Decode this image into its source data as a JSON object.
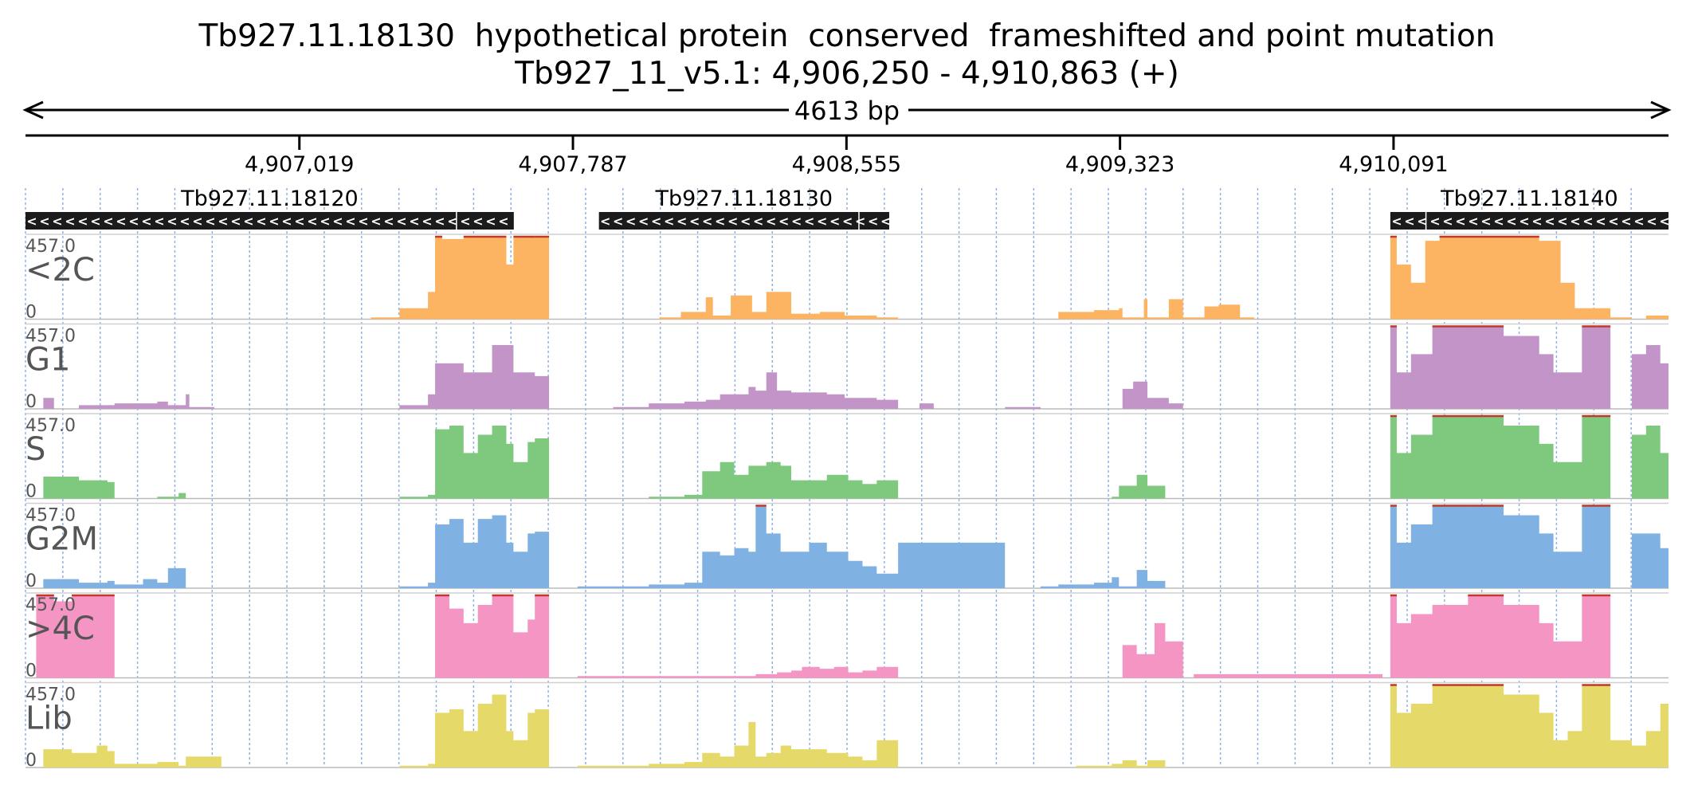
{
  "title": "Tb927.11.18130  hypothetical protein  conserved  frameshifted and point mutation",
  "subtitle": "Tb927_11_v5.1: 4,906,250 - 4,910,863 (+)",
  "span_label": "4613 bp",
  "region": {
    "chrom": "Tb927_11_v5.1",
    "start": 4906250,
    "end": 4910863,
    "strand": "+"
  },
  "ticks": [
    {
      "pos": 4907019,
      "label": "4,907,019"
    },
    {
      "pos": 4907787,
      "label": "4,907,787"
    },
    {
      "pos": 4908555,
      "label": "4,908,555"
    },
    {
      "pos": 4909323,
      "label": "4,909,323"
    },
    {
      "pos": 4910091,
      "label": "4,910,091"
    }
  ],
  "genes": [
    {
      "name": "Tb927.11.18120",
      "start": 4906250,
      "end": 4907621,
      "strand": "-",
      "segments": [
        [
          4906250,
          4907460
        ],
        [
          4907460,
          4907621
        ]
      ]
    },
    {
      "name": "Tb927.11.18130",
      "start": 4907860,
      "end": 4908675,
      "strand": "-",
      "segments": [
        [
          4907860,
          4908590
        ],
        [
          4908590,
          4908675
        ]
      ]
    },
    {
      "name": "Tb927.11.18140",
      "start": 4910082,
      "end": 4910863,
      "strand": "-",
      "segments": [
        [
          4910082,
          4910182
        ],
        [
          4910182,
          4910863
        ]
      ]
    }
  ],
  "colors": {
    "axis": "#000000",
    "gene_fill": "#1b1b1b",
    "gene_arrow": "#ffffff",
    "grid": "#8fb3df",
    "track_label": "#555555",
    "clip": "#c0392b"
  },
  "chart_data": {
    "type": "area",
    "x_unit": "bp",
    "xlim": [
      4906250,
      4910863
    ],
    "ylim": [
      0,
      457.0
    ],
    "tracks": [
      {
        "name": "<2C",
        "max_label": "457.0",
        "min_label": "0",
        "color": "#fdb462",
        "x": [
          4906250,
          4907200,
          4907220,
          4907300,
          4907380,
          4907400,
          4907420,
          4907480,
          4907560,
          4907600,
          4907620,
          4907680,
          4907720,
          4907850,
          4908000,
          4908030,
          4908090,
          4908160,
          4908180,
          4908230,
          4908290,
          4908330,
          4908400,
          4908480,
          4908550,
          4908640,
          4908700,
          4909030,
          4909150,
          4909250,
          4909320,
          4909330,
          4909390,
          4909400,
          4909460,
          4909500,
          4909560,
          4909600,
          4909660,
          4909700,
          4910060,
          4910082,
          4910100,
          4910140,
          4910180,
          4910220,
          4910400,
          4910500,
          4910560,
          4910600,
          4910700,
          4910760,
          4910800,
          4910863
        ],
        "y": [
          0,
          0,
          10,
          60,
          150,
          457,
          440,
          457,
          457,
          300,
          457,
          457,
          0,
          0,
          0,
          10,
          40,
          120,
          20,
          130,
          40,
          150,
          30,
          40,
          20,
          10,
          0,
          0,
          40,
          50,
          60,
          10,
          110,
          10,
          110,
          10,
          70,
          80,
          10,
          0,
          0,
          457,
          300,
          200,
          430,
          457,
          457,
          430,
          200,
          60,
          10,
          0,
          20,
          50
        ]
      },
      {
        "name": "G1",
        "max_label": "457.0",
        "min_label": "0",
        "color": "#c294c8",
        "x": [
          4906250,
          4906300,
          4906330,
          4906400,
          4906500,
          4906620,
          4906650,
          4906700,
          4906710,
          4906780,
          4907000,
          4907100,
          4907200,
          4907300,
          4907380,
          4907400,
          4907480,
          4907560,
          4907620,
          4907680,
          4907720,
          4907900,
          4908000,
          4908100,
          4908160,
          4908200,
          4908280,
          4908300,
          4908330,
          4908360,
          4908400,
          4908500,
          4908550,
          4908640,
          4908700,
          4908760,
          4908800,
          4908900,
          4909000,
          4909100,
          4909250,
          4909330,
          4909360,
          4909400,
          4909460,
          4909500,
          4909600,
          4909700,
          4910060,
          4910082,
          4910100,
          4910140,
          4910200,
          4910300,
          4910400,
          4910500,
          4910540,
          4910580,
          4910620,
          4910660,
          4910700,
          4910760,
          4910800,
          4910840,
          4910863
        ],
        "y": [
          0,
          60,
          0,
          20,
          30,
          40,
          20,
          80,
          10,
          0,
          0,
          0,
          0,
          20,
          80,
          250,
          200,
          350,
          200,
          180,
          0,
          10,
          30,
          40,
          50,
          80,
          120,
          100,
          200,
          100,
          90,
          80,
          60,
          50,
          0,
          30,
          0,
          0,
          10,
          0,
          0,
          110,
          150,
          60,
          30,
          0,
          0,
          0,
          0,
          457,
          200,
          300,
          457,
          457,
          400,
          300,
          200,
          200,
          457,
          457,
          0,
          300,
          350,
          250,
          380
        ]
      },
      {
        "name": "S",
        "max_label": "457.0",
        "min_label": "0",
        "color": "#7fc97f",
        "x": [
          4906250,
          4906300,
          4906400,
          4906480,
          4906500,
          4906620,
          4906680,
          4906700,
          4907000,
          4907200,
          4907300,
          4907380,
          4907400,
          4907440,
          4907480,
          4907520,
          4907560,
          4907600,
          4907620,
          4907660,
          4907680,
          4907720,
          4907800,
          4908000,
          4908100,
          4908150,
          4908200,
          4908240,
          4908280,
          4908330,
          4908370,
          4908400,
          4908500,
          4908560,
          4908600,
          4908640,
          4908700,
          4909200,
          4909300,
          4909320,
          4909370,
          4909400,
          4909450,
          4910060,
          4910082,
          4910100,
          4910140,
          4910200,
          4910300,
          4910400,
          4910500,
          4910540,
          4910580,
          4910620,
          4910660,
          4910700,
          4910760,
          4910800,
          4910840,
          4910863
        ],
        "y": [
          0,
          120,
          100,
          90,
          0,
          10,
          30,
          0,
          0,
          0,
          10,
          20,
          380,
          400,
          250,
          350,
          400,
          300,
          200,
          310,
          330,
          0,
          0,
          10,
          20,
          150,
          200,
          130,
          180,
          200,
          180,
          100,
          130,
          100,
          80,
          100,
          0,
          0,
          10,
          70,
          130,
          70,
          0,
          0,
          457,
          250,
          350,
          457,
          457,
          400,
          300,
          200,
          200,
          457,
          457,
          0,
          350,
          400,
          250,
          380
        ]
      },
      {
        "name": "G2M",
        "max_label": "457.0",
        "min_label": "0",
        "color": "#80b1e3",
        "x": [
          4906250,
          4906300,
          4906400,
          4906480,
          4906500,
          4906580,
          4906620,
          4906650,
          4906700,
          4907000,
          4907200,
          4907300,
          4907380,
          4907400,
          4907440,
          4907480,
          4907520,
          4907560,
          4907600,
          4907620,
          4907660,
          4907680,
          4907720,
          4907800,
          4908000,
          4908100,
          4908150,
          4908200,
          4908240,
          4908280,
          4908300,
          4908330,
          4908370,
          4908400,
          4908450,
          4908500,
          4908560,
          4908600,
          4908640,
          4908700,
          4909000,
          4909100,
          4909150,
          4909250,
          4909300,
          4909320,
          4909370,
          4909400,
          4909450,
          4910060,
          4910082,
          4910100,
          4910140,
          4910200,
          4910300,
          4910400,
          4910500,
          4910540,
          4910580,
          4910620,
          4910660,
          4910700,
          4910760,
          4910800,
          4910840,
          4910863
        ],
        "y": [
          0,
          50,
          30,
          40,
          20,
          50,
          30,
          110,
          0,
          0,
          0,
          10,
          30,
          350,
          380,
          250,
          380,
          400,
          250,
          200,
          300,
          310,
          0,
          10,
          20,
          30,
          200,
          180,
          220,
          200,
          457,
          300,
          200,
          200,
          250,
          200,
          150,
          120,
          80,
          250,
          0,
          10,
          20,
          30,
          60,
          10,
          100,
          40,
          0,
          0,
          457,
          250,
          350,
          457,
          457,
          400,
          300,
          200,
          200,
          457,
          457,
          0,
          300,
          300,
          220,
          300
        ]
      },
      {
        "name": ">4C",
        "max_label": "457.0",
        "min_label": "0",
        "color": "#f495c4",
        "x": [
          4906250,
          4906280,
          4906330,
          4906380,
          4906480,
          4906500,
          4907380,
          4907400,
          4907440,
          4907480,
          4907520,
          4907560,
          4907600,
          4907620,
          4907660,
          4907680,
          4907720,
          4907800,
          4908000,
          4908300,
          4908360,
          4908400,
          4908430,
          4908480,
          4908520,
          4908560,
          4908600,
          4908640,
          4908700,
          4909200,
          4909330,
          4909370,
          4909420,
          4909450,
          4909500,
          4909530,
          4910060,
          4910082,
          4910100,
          4910140,
          4910200,
          4910300,
          4910400,
          4910500,
          4910540,
          4910580,
          4910620,
          4910700
        ],
        "y": [
          0,
          457,
          420,
          457,
          457,
          0,
          0,
          457,
          380,
          300,
          400,
          457,
          457,
          250,
          320,
          457,
          0,
          10,
          10,
          20,
          30,
          40,
          60,
          50,
          60,
          30,
          40,
          60,
          0,
          0,
          180,
          130,
          300,
          200,
          0,
          20,
          0,
          457,
          300,
          350,
          400,
          457,
          400,
          300,
          200,
          200,
          457,
          0
        ]
      },
      {
        "name": "Lib",
        "max_label": "457.0",
        "min_label": "0",
        "color": "#e5d96a",
        "x": [
          4906250,
          4906300,
          4906380,
          4906450,
          4906480,
          4906500,
          4906620,
          4906680,
          4906700,
          4906800,
          4907000,
          4907200,
          4907300,
          4907380,
          4907400,
          4907440,
          4907480,
          4907520,
          4907560,
          4907600,
          4907620,
          4907660,
          4907680,
          4907720,
          4907800,
          4908000,
          4908100,
          4908150,
          4908200,
          4908240,
          4908280,
          4908300,
          4908330,
          4908370,
          4908400,
          4908500,
          4908560,
          4908600,
          4908640,
          4908700,
          4909000,
          4909200,
          4909300,
          4909330,
          4909370,
          4909400,
          4909450,
          4910060,
          4910082,
          4910100,
          4910140,
          4910200,
          4910300,
          4910400,
          4910500,
          4910540,
          4910580,
          4910620,
          4910660,
          4910700,
          4910760,
          4910800,
          4910840,
          4910863
        ],
        "y": [
          0,
          100,
          80,
          120,
          90,
          20,
          30,
          10,
          60,
          0,
          0,
          0,
          10,
          20,
          300,
          320,
          200,
          350,
          400,
          200,
          150,
          300,
          320,
          0,
          10,
          20,
          30,
          80,
          60,
          120,
          250,
          60,
          80,
          120,
          100,
          80,
          60,
          40,
          150,
          0,
          0,
          10,
          20,
          40,
          10,
          40,
          0,
          0,
          457,
          300,
          350,
          457,
          457,
          400,
          300,
          150,
          200,
          457,
          457,
          150,
          120,
          200,
          350,
          380
        ]
      }
    ]
  }
}
